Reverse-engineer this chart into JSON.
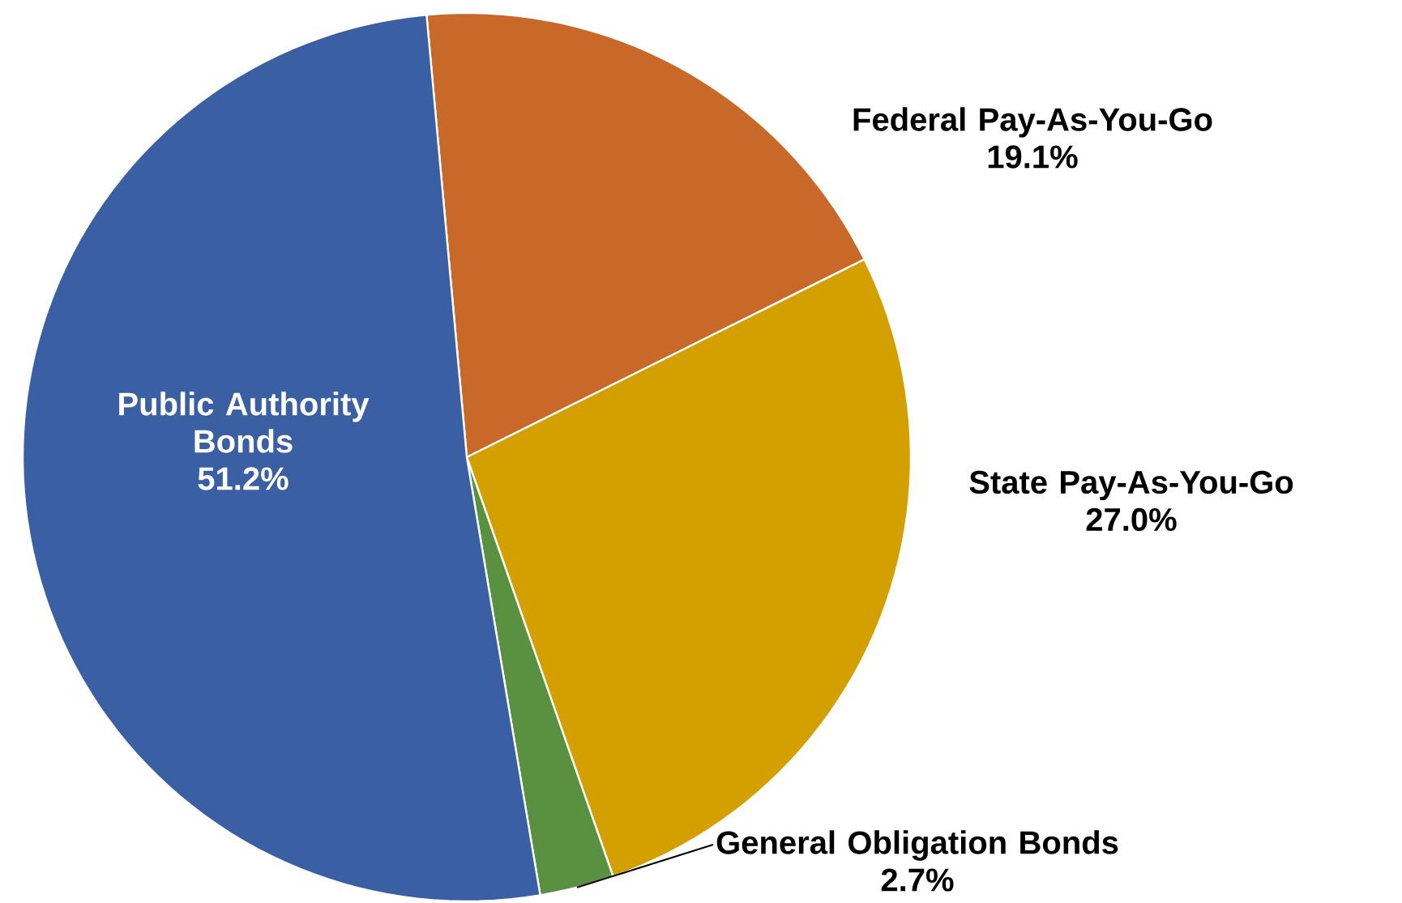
{
  "chart_data": {
    "type": "pie",
    "categories": [
      "Federal Pay-As-You-Go",
      "State Pay-As-You-Go",
      "General Obligation Bonds",
      "Public Authority Bonds"
    ],
    "values": [
      19.1,
      27.0,
      2.7,
      51.2
    ],
    "value_labels": [
      "19.1%",
      "27.0%",
      "2.7%",
      "51.2%"
    ],
    "colors": [
      "#c8692a",
      "#d4a000",
      "#5a9140",
      "#3a5fa3"
    ]
  }
}
